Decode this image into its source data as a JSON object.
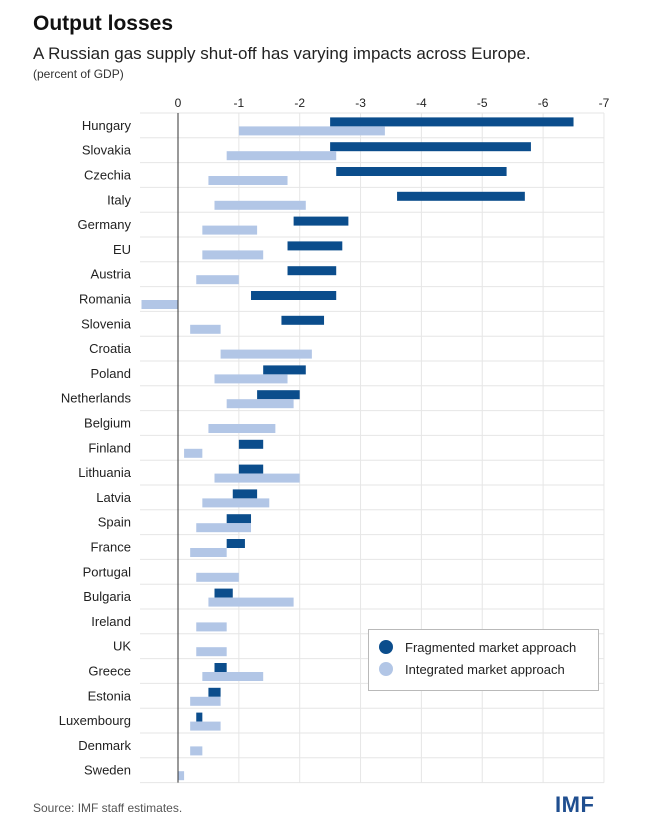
{
  "title": "Output losses",
  "subtitle": "A Russian gas supply shut-off has varying impacts across Europe.",
  "unit": "(percent of GDP)",
  "source": "Source: IMF staff estimates.",
  "logo": "IMF",
  "colors": {
    "fragmented": "#0b4d8c",
    "integrated": "#b2c6e6",
    "grid": "#e6e6e6",
    "axis": "#333333"
  },
  "legend": {
    "fragmented_label": "Fragmented market approach",
    "integrated_label": "Integrated market approach"
  },
  "chart_data": {
    "type": "bar",
    "orientation": "horizontal",
    "x_ticks": [
      0,
      -1,
      -2,
      -3,
      -4,
      -5,
      -6,
      -7
    ],
    "x_tick_labels": [
      "0",
      "-1",
      "-2",
      "-3",
      "-4",
      "-5",
      "-6",
      "-7"
    ],
    "xlim": [
      0,
      -7
    ],
    "grid": true,
    "legend_position": "bottom-right",
    "categories": [
      "Hungary",
      "Slovakia",
      "Czechia",
      "Italy",
      "Germany",
      "EU",
      "Austria",
      "Romania",
      "Slovenia",
      "Croatia",
      "Poland",
      "Netherlands",
      "Belgium",
      "Finland",
      "Lithuania",
      "Latvia",
      "Spain",
      "France",
      "Portugal",
      "Bulgaria",
      "Ireland",
      "UK",
      "Greece",
      "Estonia",
      "Luxembourg",
      "Denmark",
      "Sweden"
    ],
    "series": [
      {
        "name": "Fragmented market approach",
        "ranges": [
          [
            -2.5,
            -6.5
          ],
          [
            -2.5,
            -5.8
          ],
          [
            -2.6,
            -5.4
          ],
          [
            -3.6,
            -5.7
          ],
          [
            -1.9,
            -2.8
          ],
          [
            -1.8,
            -2.7
          ],
          [
            -1.8,
            -2.6
          ],
          [
            -1.2,
            -2.6
          ],
          [
            -1.7,
            -2.4
          ],
          null,
          [
            -1.4,
            -2.1
          ],
          [
            -1.3,
            -2.0
          ],
          null,
          [
            -1.0,
            -1.4
          ],
          [
            -1.0,
            -1.4
          ],
          [
            -0.9,
            -1.3
          ],
          [
            -0.8,
            -1.2
          ],
          [
            -0.8,
            -1.1
          ],
          null,
          [
            -0.6,
            -0.9
          ],
          null,
          null,
          [
            -0.6,
            -0.8
          ],
          [
            -0.5,
            -0.7
          ],
          [
            -0.3,
            -0.4
          ],
          null,
          null
        ]
      },
      {
        "name": "Integrated market approach",
        "ranges": [
          [
            -1.0,
            -3.4
          ],
          [
            -0.8,
            -2.6
          ],
          [
            -0.5,
            -1.8
          ],
          [
            -0.6,
            -2.1
          ],
          [
            -0.4,
            -1.3
          ],
          [
            -0.4,
            -1.4
          ],
          [
            -0.3,
            -1.0
          ],
          [
            0.6,
            0.0
          ],
          [
            -0.2,
            -0.7
          ],
          [
            -0.7,
            -2.2
          ],
          [
            -0.6,
            -1.8
          ],
          [
            -0.8,
            -1.9
          ],
          [
            -0.5,
            -1.6
          ],
          [
            -0.1,
            -0.4
          ],
          [
            -0.6,
            -2.0
          ],
          [
            -0.4,
            -1.5
          ],
          [
            -0.3,
            -1.2
          ],
          [
            -0.2,
            -0.8
          ],
          [
            -0.3,
            -1.0
          ],
          [
            -0.5,
            -1.9
          ],
          [
            -0.3,
            -0.8
          ],
          [
            -0.3,
            -0.8
          ],
          [
            -0.4,
            -1.4
          ],
          [
            -0.2,
            -0.7
          ],
          [
            -0.2,
            -0.7
          ],
          [
            -0.2,
            -0.4
          ],
          [
            0.0,
            -0.1
          ]
        ]
      }
    ]
  }
}
